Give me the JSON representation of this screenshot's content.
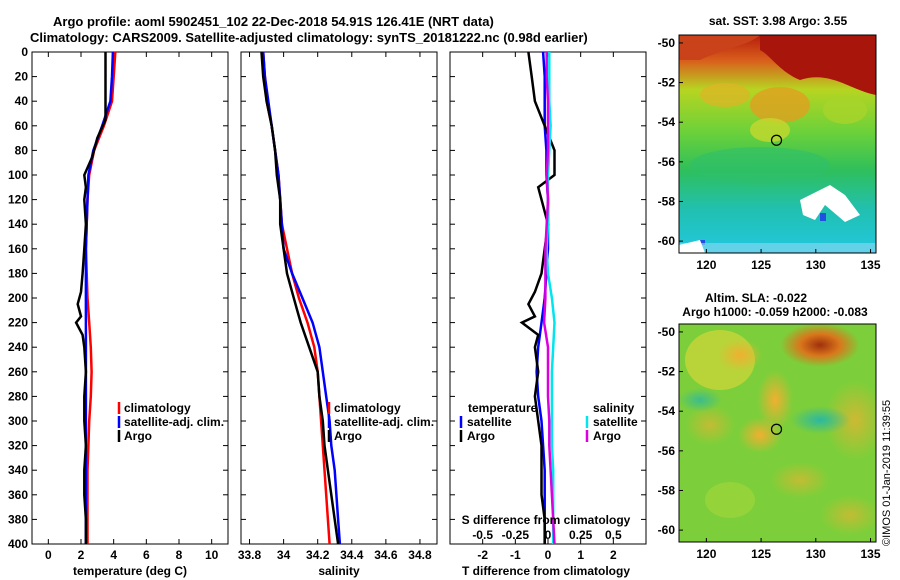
{
  "header": {
    "line1": "Argo profile: aoml 5902451_102 22-Dec-2018 54.91S 126.41E (NRT data)",
    "line2": "Climatology: CARS2009. Satellite-adjusted climatology: synTS_20181222.nc (0.98d earlier)"
  },
  "side_stamp": "©IMOS 01-Jan-2019 11:39:55",
  "colors": {
    "climatology": "#ff0000",
    "satellite": "#0000ff",
    "argo": "#000000",
    "sat_salinity": "#00e5ee",
    "argo_salinity": "#dd00dd"
  },
  "depth_ticks": [
    0,
    20,
    40,
    60,
    80,
    100,
    120,
    140,
    160,
    180,
    200,
    220,
    240,
    260,
    280,
    300,
    320,
    340,
    360,
    380,
    400
  ],
  "chart_data": [
    {
      "type": "line",
      "name": "temperature",
      "xlabel": "temperature (deg C)",
      "ylabel": "depth",
      "xlim": [
        -1,
        11
      ],
      "ylim": [
        400,
        0
      ],
      "xticks": [
        0,
        2,
        4,
        6,
        8,
        10
      ],
      "legend": [
        "climatology",
        "satellite-adj. clim.",
        "Argo"
      ],
      "series": [
        {
          "name": "climatology",
          "color": "#ff0000",
          "depth": [
            0,
            20,
            40,
            60,
            80,
            100,
            120,
            140,
            160,
            180,
            200,
            220,
            240,
            260,
            280,
            300,
            320,
            340,
            360,
            380,
            400
          ],
          "values": [
            4.1,
            4.0,
            3.9,
            3.4,
            2.8,
            2.5,
            2.4,
            2.35,
            2.3,
            2.35,
            2.4,
            2.5,
            2.6,
            2.65,
            2.6,
            2.5,
            2.45,
            2.4,
            2.4,
            2.4,
            2.4
          ]
        },
        {
          "name": "satellite-adj. clim.",
          "color": "#0000ff",
          "depth": [
            0,
            20,
            40,
            60,
            80,
            100,
            120,
            140,
            160,
            180,
            200,
            220,
            240,
            260,
            280,
            300,
            320,
            340,
            360,
            380,
            400
          ],
          "values": [
            3.95,
            3.9,
            3.8,
            3.3,
            2.75,
            2.45,
            2.4,
            2.35,
            2.3,
            2.3,
            2.3,
            2.3,
            2.3,
            2.3,
            2.3,
            2.3,
            2.3,
            2.3,
            2.3,
            2.3,
            2.3
          ]
        },
        {
          "name": "Argo",
          "color": "#000000",
          "depth": [
            0,
            20,
            40,
            55,
            70,
            85,
            100,
            110,
            120,
            140,
            160,
            180,
            195,
            205,
            215,
            220,
            230,
            240,
            260,
            280,
            300,
            320,
            340,
            360,
            380,
            400
          ],
          "values": [
            3.5,
            3.5,
            3.5,
            3.5,
            3.0,
            2.7,
            2.2,
            2.3,
            2.2,
            2.3,
            2.2,
            2.1,
            2.0,
            1.8,
            2.0,
            1.7,
            2.1,
            2.2,
            2.3,
            2.2,
            2.2,
            2.3,
            2.2,
            2.2,
            2.3,
            2.3
          ]
        }
      ]
    },
    {
      "type": "line",
      "name": "salinity",
      "xlabel": "salinity",
      "ylabel": "depth",
      "xlim": [
        33.75,
        34.9
      ],
      "ylim": [
        400,
        0
      ],
      "xticks": [
        33.8,
        34,
        34.2,
        34.4,
        34.6,
        34.8
      ],
      "xticklabels": [
        "33.8",
        "34",
        "34.2",
        "34.4",
        "34.6",
        "34.8"
      ],
      "legend": [
        "climatology",
        "satellite-adj. clim.",
        "Argo"
      ],
      "series": [
        {
          "name": "climatology",
          "color": "#ff0000",
          "depth": [
            0,
            20,
            40,
            60,
            80,
            100,
            120,
            140,
            160,
            180,
            200,
            220,
            240,
            260,
            280,
            300,
            320,
            340,
            360,
            380,
            400
          ],
          "values": [
            33.88,
            33.89,
            33.9,
            33.93,
            33.95,
            33.97,
            33.98,
            33.99,
            34.02,
            34.05,
            34.09,
            34.14,
            34.18,
            34.2,
            34.21,
            34.22,
            34.23,
            34.24,
            34.25,
            34.26,
            34.27
          ]
        },
        {
          "name": "satellite-adj. clim.",
          "color": "#0000ff",
          "depth": [
            0,
            20,
            40,
            60,
            80,
            100,
            120,
            140,
            160,
            180,
            200,
            220,
            240,
            260,
            280,
            300,
            320,
            340,
            360,
            380,
            400
          ],
          "values": [
            33.88,
            33.89,
            33.91,
            33.93,
            33.95,
            33.97,
            33.98,
            33.99,
            34.0,
            34.05,
            34.11,
            34.17,
            34.21,
            34.23,
            34.25,
            34.27,
            34.28,
            34.3,
            34.31,
            34.32,
            34.33
          ]
        },
        {
          "name": "Argo",
          "color": "#000000",
          "depth": [
            0,
            20,
            40,
            60,
            80,
            100,
            120,
            140,
            160,
            180,
            195,
            210,
            220,
            240,
            260,
            280,
            300,
            320,
            340,
            360,
            380,
            400
          ],
          "values": [
            33.87,
            33.88,
            33.9,
            33.93,
            33.95,
            33.96,
            33.98,
            33.98,
            34.0,
            34.02,
            34.05,
            34.08,
            34.1,
            34.15,
            34.2,
            34.21,
            34.23,
            34.24,
            34.26,
            34.28,
            34.3,
            34.32
          ]
        }
      ]
    },
    {
      "type": "line",
      "name": "differences",
      "xlabel": "T difference from climatology",
      "toplabel": "S difference from climatology",
      "xlim": [
        -3,
        3
      ],
      "ylim": [
        400,
        0
      ],
      "xticks": [
        -2,
        -1,
        0,
        1,
        2
      ],
      "xticklabels": [
        "-2",
        "-1",
        "0",
        "1",
        "2"
      ],
      "top_ticks": [
        -0.5,
        -0.25,
        0,
        0.25,
        0.5
      ],
      "top_ticklabels": [
        "-0.5",
        "-0.25",
        "0",
        "0.25",
        "0.5"
      ],
      "legend_temperature_title": "temperature",
      "legend_salinity_title": "salinity",
      "legend_temperature": [
        "satellite",
        "Argo"
      ],
      "legend_salinity": [
        "satellite",
        "Argo"
      ],
      "series": [
        {
          "name": "T satellite",
          "color": "#0000ff",
          "depth": [
            0,
            20,
            40,
            60,
            80,
            100,
            120,
            140,
            160,
            180,
            200,
            220,
            240,
            260,
            280,
            300,
            320,
            340,
            360,
            380,
            400
          ],
          "values": [
            -0.15,
            -0.1,
            -0.1,
            -0.1,
            -0.05,
            -0.05,
            0,
            0,
            0,
            -0.05,
            -0.1,
            -0.2,
            -0.3,
            -0.35,
            -0.3,
            -0.2,
            -0.15,
            -0.1,
            -0.1,
            -0.1,
            -0.1
          ]
        },
        {
          "name": "T Argo",
          "color": "#000000",
          "depth": [
            0,
            20,
            40,
            60,
            80,
            100,
            110,
            120,
            140,
            160,
            180,
            195,
            205,
            215,
            220,
            230,
            240,
            260,
            280,
            300,
            320,
            340,
            360,
            380,
            400
          ],
          "values": [
            -0.6,
            -0.5,
            -0.4,
            -0.1,
            0.2,
            0.2,
            -0.3,
            -0.2,
            0,
            -0.1,
            -0.2,
            -0.4,
            -0.6,
            -0.4,
            -0.8,
            -0.3,
            -0.4,
            -0.3,
            -0.4,
            -0.3,
            -0.2,
            -0.2,
            -0.2,
            -0.1,
            -0.1
          ]
        },
        {
          "name": "S satellite",
          "color": "#00e5ee",
          "depth": [
            0,
            20,
            40,
            60,
            80,
            100,
            120,
            140,
            160,
            180,
            200,
            220,
            240,
            260,
            280,
            300,
            320,
            340,
            360,
            380,
            400
          ],
          "values": [
            0.01,
            0.01,
            0.01,
            0.02,
            0.01,
            0.0,
            0.0,
            0.0,
            -0.01,
            0.0,
            0.03,
            0.05,
            0.04,
            0.03,
            0.03,
            0.03,
            0.03,
            0.04,
            0.04,
            0.04,
            0.04
          ]
        },
        {
          "name": "S Argo",
          "color": "#dd00dd",
          "depth": [
            0,
            20,
            40,
            60,
            80,
            100,
            120,
            140,
            160,
            180,
            200,
            220,
            240,
            260,
            280,
            300,
            320,
            340,
            360,
            380,
            400
          ],
          "values": [
            -0.01,
            -0.01,
            0.0,
            0.0,
            0.0,
            -0.01,
            0.0,
            -0.01,
            -0.02,
            -0.02,
            -0.02,
            -0.03,
            0.0,
            0.0,
            0.0,
            0.01,
            0.01,
            0.02,
            0.03,
            0.04,
            0.05
          ]
        }
      ]
    },
    {
      "type": "heatmap",
      "name": "sst-map",
      "title": "sat. SST: 3.98 Argo: 3.55",
      "xticks": [
        120,
        125,
        130,
        135
      ],
      "yticks": [
        -50,
        -52,
        -54,
        -56,
        -58,
        -60
      ],
      "xlim": [
        117.5,
        135.5
      ],
      "ylim": [
        -60.6,
        -49.6
      ],
      "marker": {
        "lon": 126.41,
        "lat": -54.91
      }
    },
    {
      "type": "heatmap",
      "name": "sla-map",
      "title": "Altim. SLA: -0.022",
      "subtitle": "Argo h1000: -0.059 h2000: -0.083",
      "xticks": [
        120,
        125,
        130,
        135
      ],
      "yticks": [
        -50,
        -52,
        -54,
        -56,
        -58,
        -60
      ],
      "xlim": [
        117.5,
        135.5
      ],
      "ylim": [
        -60.6,
        -49.6
      ],
      "marker": {
        "lon": 126.41,
        "lat": -54.91
      }
    }
  ]
}
